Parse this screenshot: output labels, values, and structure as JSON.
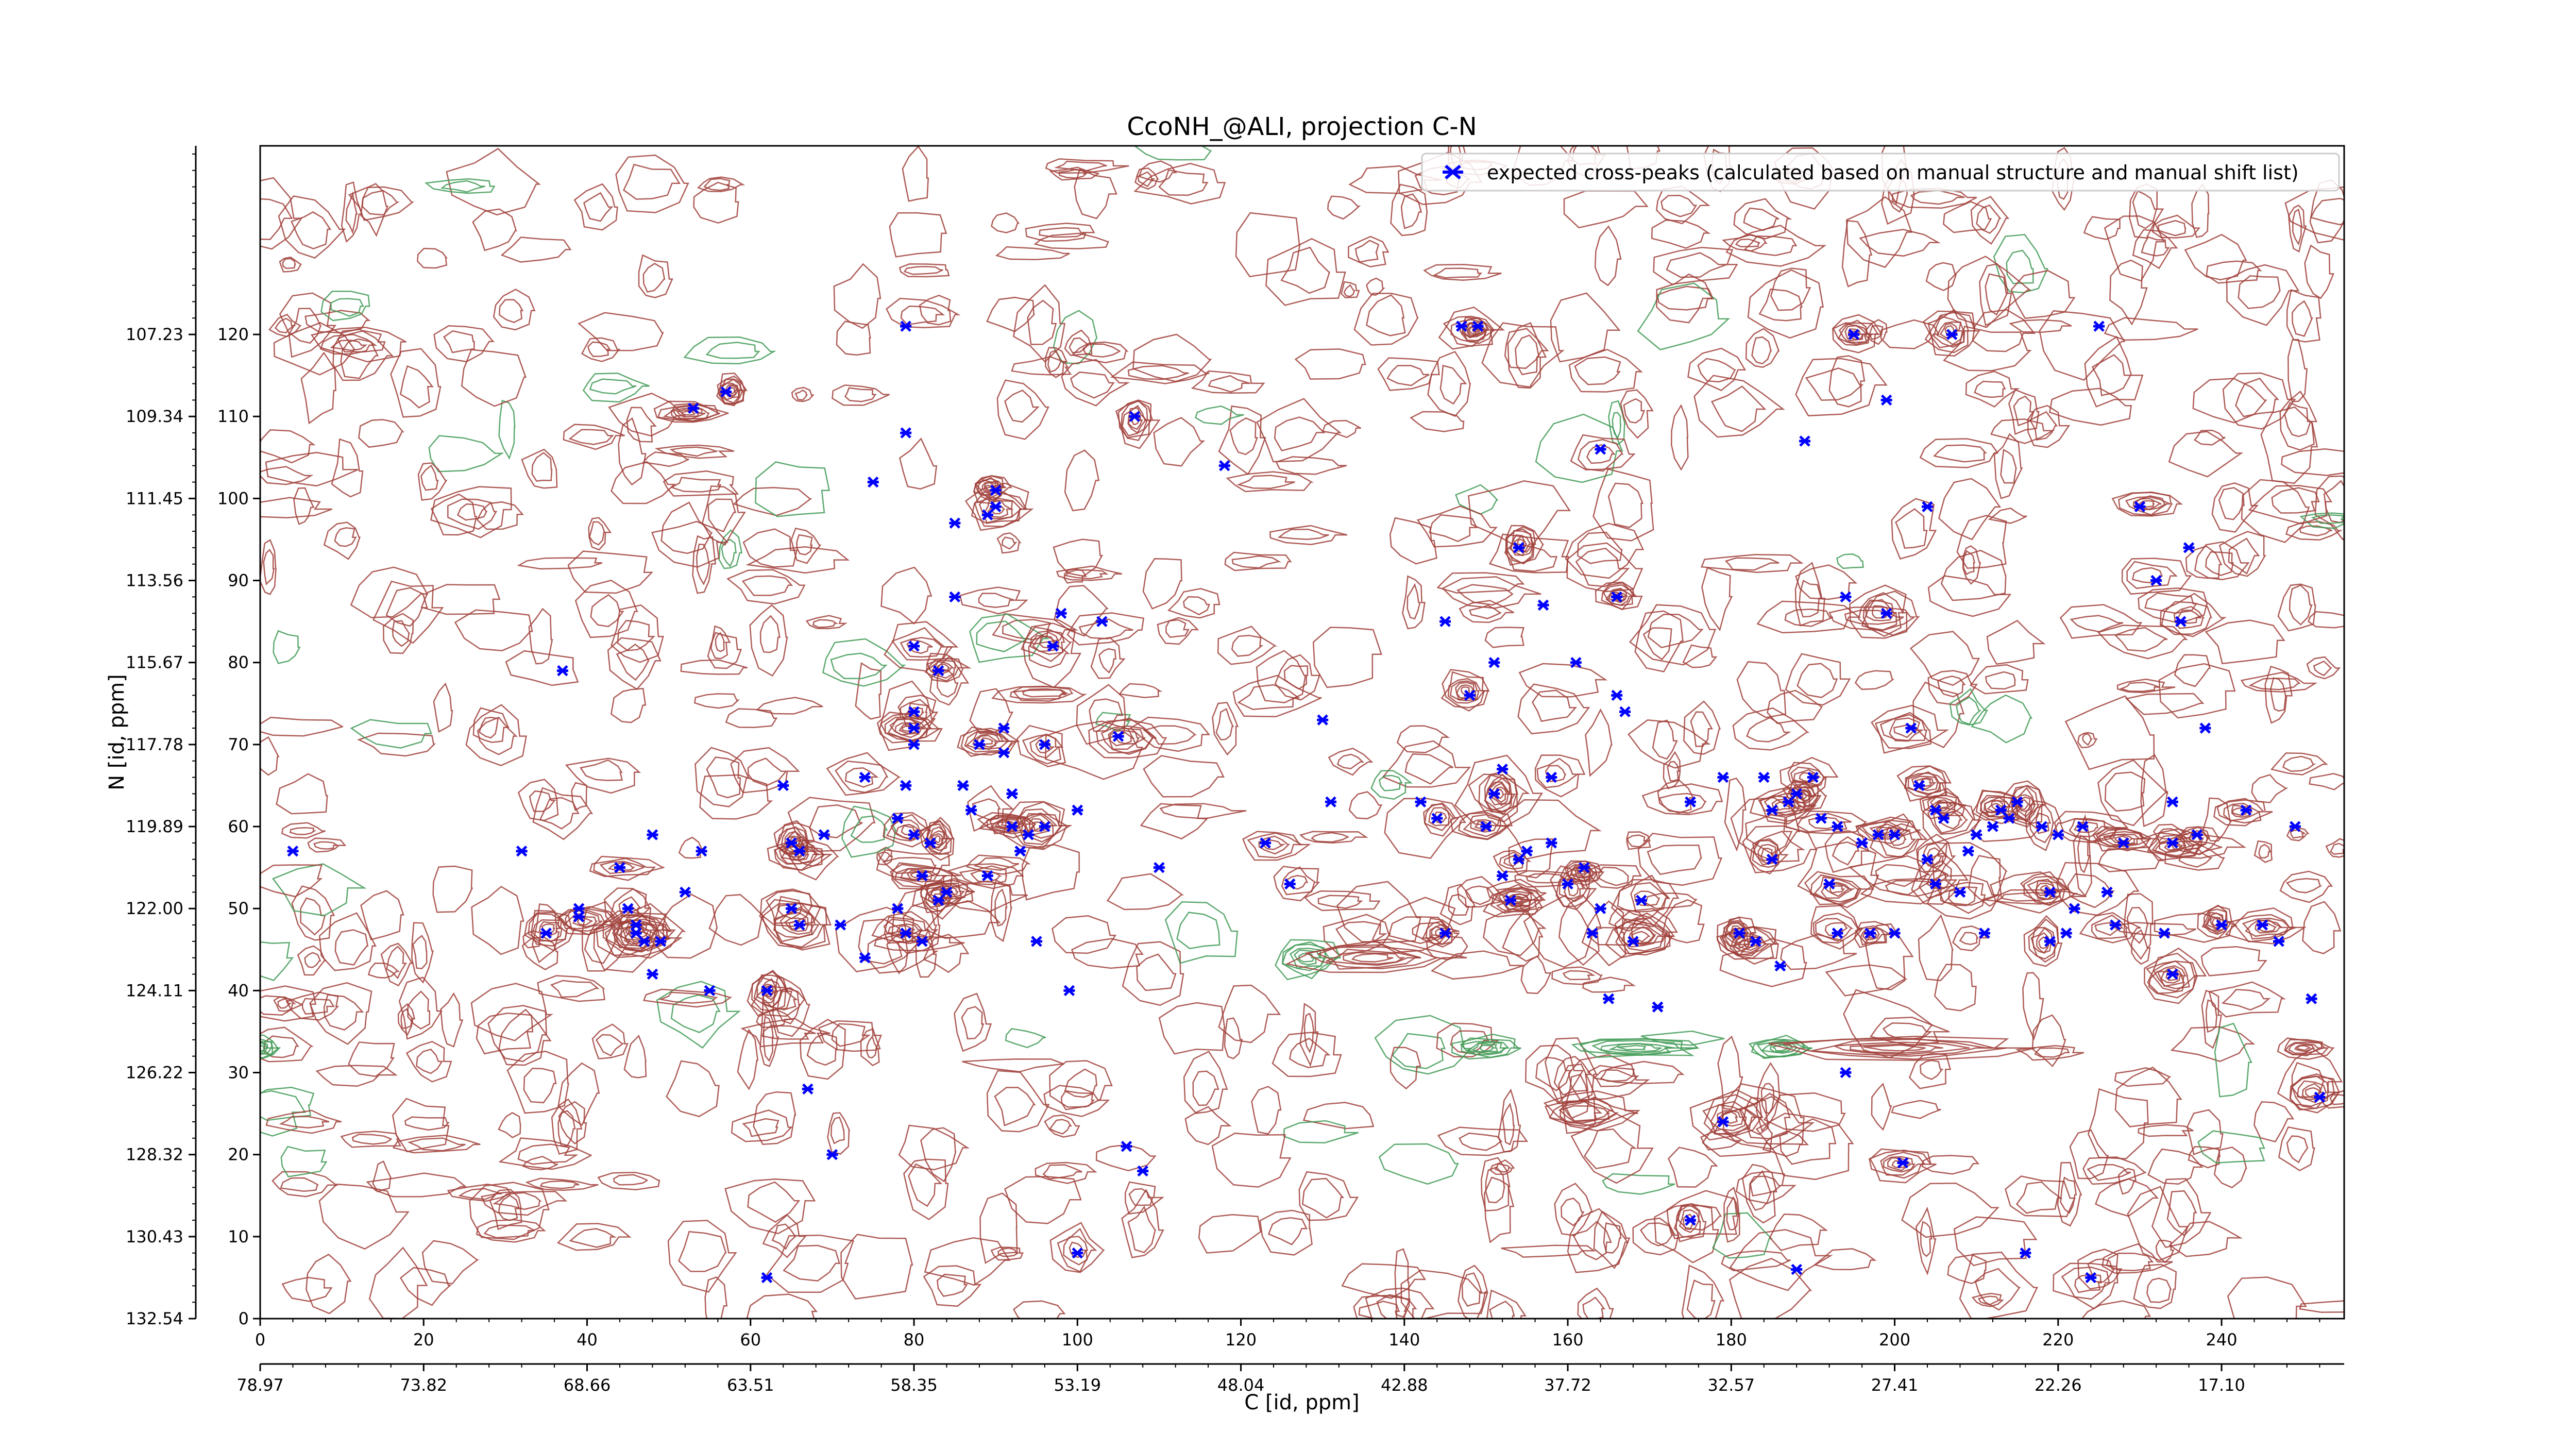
{
  "chart_data": {
    "type": "scatter",
    "title": "CcoNH_@ALI, projection C-N",
    "xlabel": "C [id, ppm]",
    "ylabel": "N [id, ppm]",
    "xlim": [
      0,
      255
    ],
    "ylim": [
      0,
      143
    ],
    "x_index_ticks": [
      "0",
      "20",
      "40",
      "60",
      "80",
      "100",
      "120",
      "140",
      "160",
      "180",
      "200",
      "220",
      "240"
    ],
    "x_ppm_ticks": [
      "78.97",
      "73.82",
      "68.66",
      "63.51",
      "58.35",
      "53.19",
      "48.04",
      "42.88",
      "37.72",
      "32.57",
      "27.41",
      "22.26",
      "17.10"
    ],
    "y_index_ticks": [
      "0",
      "10",
      "20",
      "30",
      "40",
      "50",
      "60",
      "70",
      "80",
      "90",
      "100",
      "110",
      "120"
    ],
    "y_ppm_ticks": [
      "132.54",
      "130.43",
      "128.32",
      "126.22",
      "124.11",
      "122.00",
      "119.89",
      "117.78",
      "115.67",
      "113.56",
      "111.45",
      "109.34",
      "107.23"
    ],
    "legend": {
      "position": "top-right",
      "label": "expected cross-peaks (calculated based on manual structure and manual shift list)"
    },
    "contour_colors": {
      "positive": "#a0403a",
      "negative": "#3f9a55"
    },
    "marker_color": "#0000ff",
    "series": [
      {
        "name": "expected cross-peaks (calculated based on manual structure and manual shift list)",
        "points": [
          [
            4,
            57
          ],
          [
            32,
            57
          ],
          [
            35,
            47
          ],
          [
            37,
            79
          ],
          [
            39,
            49
          ],
          [
            39,
            50
          ],
          [
            44,
            55
          ],
          [
            45,
            50
          ],
          [
            46,
            47
          ],
          [
            46,
            48
          ],
          [
            47,
            46
          ],
          [
            48,
            59
          ],
          [
            48,
            42
          ],
          [
            49,
            46
          ],
          [
            52,
            52
          ],
          [
            54,
            57
          ],
          [
            53,
            111
          ],
          [
            55,
            40
          ],
          [
            57,
            113
          ],
          [
            62,
            40
          ],
          [
            62,
            5
          ],
          [
            64,
            65
          ],
          [
            65,
            58
          ],
          [
            65,
            50
          ],
          [
            66,
            48
          ],
          [
            66,
            57
          ],
          [
            67,
            28
          ],
          [
            69,
            59
          ],
          [
            70,
            20
          ],
          [
            71,
            48
          ],
          [
            74,
            44
          ],
          [
            74,
            66
          ],
          [
            75,
            102
          ],
          [
            78,
            61
          ],
          [
            78,
            50
          ],
          [
            79,
            47
          ],
          [
            79,
            65
          ],
          [
            80,
            70
          ],
          [
            80,
            59
          ],
          [
            80,
            74
          ],
          [
            80,
            72
          ],
          [
            80,
            82
          ],
          [
            79,
            121
          ],
          [
            79,
            108
          ],
          [
            81,
            54
          ],
          [
            81,
            46
          ],
          [
            82,
            58
          ],
          [
            83,
            79
          ],
          [
            83,
            51
          ],
          [
            84,
            52
          ],
          [
            85,
            88
          ],
          [
            85,
            97
          ],
          [
            86,
            65
          ],
          [
            87,
            62
          ],
          [
            88,
            70
          ],
          [
            89,
            98
          ],
          [
            89,
            54
          ],
          [
            90,
            99
          ],
          [
            90,
            101
          ],
          [
            91,
            69
          ],
          [
            91,
            72
          ],
          [
            92,
            64
          ],
          [
            92,
            60
          ],
          [
            93,
            57
          ],
          [
            94,
            59
          ],
          [
            95,
            46
          ],
          [
            96,
            60
          ],
          [
            96,
            70
          ],
          [
            97,
            82
          ],
          [
            98,
            86
          ],
          [
            99,
            40
          ],
          [
            100,
            62
          ],
          [
            100,
            8
          ],
          [
            103,
            85
          ],
          [
            105,
            71
          ],
          [
            106,
            21
          ],
          [
            108,
            18
          ],
          [
            107,
            110
          ],
          [
            110,
            55
          ],
          [
            118,
            104
          ],
          [
            123,
            58
          ],
          [
            126,
            53
          ],
          [
            130,
            73
          ],
          [
            131,
            63
          ],
          [
            142,
            63
          ],
          [
            145,
            85
          ],
          [
            144,
            61
          ],
          [
            145,
            47
          ],
          [
            147,
            121
          ],
          [
            148,
            76
          ],
          [
            149,
            121
          ],
          [
            150,
            60
          ],
          [
            151,
            80
          ],
          [
            151,
            64
          ],
          [
            152,
            67
          ],
          [
            152,
            54
          ],
          [
            153,
            51
          ],
          [
            154,
            56
          ],
          [
            154,
            94
          ],
          [
            155,
            57
          ],
          [
            157,
            87
          ],
          [
            158,
            58
          ],
          [
            158,
            66
          ],
          [
            160,
            53
          ],
          [
            161,
            80
          ],
          [
            162,
            55
          ],
          [
            163,
            47
          ],
          [
            164,
            50
          ],
          [
            165,
            39
          ],
          [
            166,
            76
          ],
          [
            164,
            106
          ],
          [
            166,
            88
          ],
          [
            167,
            74
          ],
          [
            168,
            46
          ],
          [
            169,
            51
          ],
          [
            171,
            38
          ],
          [
            175,
            63
          ],
          [
            175,
            12
          ],
          [
            179,
            66
          ],
          [
            179,
            24
          ],
          [
            181,
            47
          ],
          [
            183,
            46
          ],
          [
            184,
            66
          ],
          [
            185,
            62
          ],
          [
            185,
            56
          ],
          [
            186,
            43
          ],
          [
            187,
            63
          ],
          [
            188,
            64
          ],
          [
            188,
            6
          ],
          [
            189,
            107
          ],
          [
            190,
            66
          ],
          [
            191,
            61
          ],
          [
            192,
            53
          ],
          [
            193,
            60
          ],
          [
            193,
            47
          ],
          [
            194,
            88
          ],
          [
            194,
            30
          ],
          [
            195,
            120
          ],
          [
            196,
            58
          ],
          [
            197,
            47
          ],
          [
            198,
            59
          ],
          [
            199,
            86
          ],
          [
            199,
            112
          ],
          [
            200,
            59
          ],
          [
            200,
            47
          ],
          [
            201,
            19
          ],
          [
            202,
            72
          ],
          [
            203,
            65
          ],
          [
            204,
            56
          ],
          [
            204,
            99
          ],
          [
            205,
            62
          ],
          [
            205,
            53
          ],
          [
            206,
            61
          ],
          [
            207,
            120
          ],
          [
            208,
            52
          ],
          [
            209,
            57
          ],
          [
            210,
            59
          ],
          [
            211,
            47
          ],
          [
            212,
            60
          ],
          [
            213,
            62
          ],
          [
            214,
            61
          ],
          [
            215,
            63
          ],
          [
            216,
            8
          ],
          [
            218,
            60
          ],
          [
            219,
            52
          ],
          [
            219,
            46
          ],
          [
            220,
            59
          ],
          [
            221,
            47
          ],
          [
            222,
            50
          ],
          [
            223,
            60
          ],
          [
            224,
            5
          ],
          [
            225,
            121
          ],
          [
            226,
            52
          ],
          [
            227,
            48
          ],
          [
            228,
            58
          ],
          [
            230,
            99
          ],
          [
            232,
            90
          ],
          [
            233,
            47
          ],
          [
            234,
            63
          ],
          [
            234,
            58
          ],
          [
            234,
            42
          ],
          [
            235,
            85
          ],
          [
            236,
            94
          ],
          [
            237,
            59
          ],
          [
            238,
            72
          ],
          [
            240,
            48
          ],
          [
            243,
            62
          ],
          [
            245,
            48
          ],
          [
            247,
            46
          ],
          [
            249,
            60
          ],
          [
            251,
            39
          ],
          [
            252,
            27
          ]
        ]
      }
    ]
  }
}
